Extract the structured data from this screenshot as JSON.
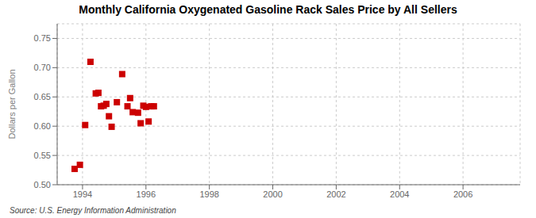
{
  "chart_data": {
    "type": "scatter",
    "title": "Monthly California Oxygenated Gasoline Rack Sales Price by All Sellers",
    "y_label": "Dollars per Gallon",
    "annotations": [
      "Source: U.S. Energy Information Administration"
    ],
    "x": [
      1993.75,
      1993.917,
      1994.083,
      1994.25,
      1994.417,
      1994.5,
      1994.583,
      1994.667,
      1994.75,
      1994.833,
      1994.917,
      1995.083,
      1995.25,
      1995.417,
      1995.5,
      1995.583,
      1995.75,
      1995.833,
      1995.917,
      1996.0,
      1996.083,
      1996.167,
      1996.25
    ],
    "values": [
      0.527,
      0.534,
      0.602,
      0.71,
      0.656,
      0.657,
      0.634,
      0.635,
      0.638,
      0.617,
      0.599,
      0.641,
      0.689,
      0.634,
      0.648,
      0.624,
      0.623,
      0.605,
      0.635,
      0.633,
      0.608,
      0.634,
      0.634
    ],
    "color": "#cc0000",
    "marker": "square",
    "xlim": [
      1993.2,
      2007.8
    ],
    "ylim": [
      0.5,
      0.775
    ],
    "xticks": [
      1994,
      1996,
      1998,
      2000,
      2002,
      2004,
      2006
    ],
    "yticks": [
      {
        "value": 0.5,
        "label": "0.50"
      },
      0.55,
      {
        "value": 0.6,
        "label": "0.60"
      },
      0.65,
      {
        "value": 0.7,
        "label": "0.70"
      },
      0.75
    ],
    "grid": true
  }
}
